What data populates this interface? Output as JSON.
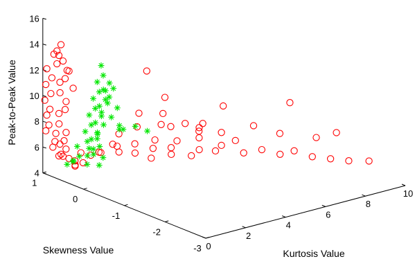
{
  "chart_data": {
    "type": "scatter",
    "title": "",
    "projection": "3d",
    "xlabel": "Kurtosis Value",
    "ylabel": "Skewness Value",
    "zlabel": "Peak-to-Peak Value",
    "xlim": [
      0,
      10
    ],
    "ylim": [
      -3,
      1
    ],
    "zlim": [
      4,
      16
    ],
    "xticks": [
      "0",
      "2",
      "4",
      "6",
      "8",
      "10"
    ],
    "yticks": [
      "1",
      "0",
      "-1",
      "-2",
      "-3"
    ],
    "zticks": [
      "4",
      "6",
      "8",
      "10",
      "12",
      "14",
      "16"
    ],
    "grid": false,
    "series": [
      {
        "marker": "circle",
        "color": "#ff0000",
        "points": [
          [
            2.2,
            0.9,
            4.6
          ],
          [
            2.5,
            0.8,
            4.8
          ],
          [
            3.0,
            0.6,
            4.9
          ],
          [
            3.3,
            0.9,
            5.0
          ],
          [
            3.6,
            0.5,
            4.7
          ],
          [
            3.8,
            0.2,
            4.6
          ],
          [
            4.0,
            0.7,
            5.0
          ],
          [
            4.3,
            0.4,
            4.9
          ],
          [
            4.6,
            0.1,
            4.7
          ],
          [
            4.8,
            0.6,
            5.1
          ],
          [
            5.0,
            0.3,
            4.8
          ],
          [
            5.2,
            -0.1,
            4.6
          ],
          [
            5.5,
            0.4,
            5.0
          ],
          [
            5.8,
            0.0,
            4.7
          ],
          [
            6.0,
            -0.3,
            4.9
          ],
          [
            6.2,
            0.2,
            5.2
          ],
          [
            6.5,
            -0.2,
            5.0
          ],
          [
            6.8,
            -0.6,
            4.8
          ],
          [
            7.0,
            -0.3,
            5.3
          ],
          [
            7.3,
            -0.8,
            5.1
          ],
          [
            7.6,
            -1.1,
            5.0
          ],
          [
            7.9,
            -1.3,
            5.4
          ],
          [
            8.2,
            -1.6,
            5.2
          ],
          [
            8.5,
            -1.9,
            5.3
          ],
          [
            8.8,
            -2.2,
            5.4
          ],
          [
            9.2,
            -2.5,
            5.6
          ],
          [
            4.0,
            0.6,
            7.5
          ],
          [
            4.5,
            0.3,
            6.8
          ],
          [
            5.0,
            0.5,
            7.2
          ],
          [
            5.5,
            0.2,
            6.6
          ],
          [
            6.0,
            0.1,
            6.2
          ],
          [
            6.5,
            -0.2,
            6.0
          ],
          [
            7.0,
            0.0,
            7.6
          ],
          [
            7.5,
            -0.5,
            6.5
          ],
          [
            8.0,
            -0.9,
            6.2
          ],
          [
            8.3,
            -1.0,
            8.6
          ],
          [
            8.6,
            -1.5,
            6.4
          ],
          [
            9.0,
            -1.8,
            7.0
          ],
          [
            3.5,
            0.4,
            6.9
          ],
          [
            4.8,
            0.8,
            10.2
          ],
          [
            5.3,
            0.6,
            8.2
          ],
          [
            3.2,
            0.7,
            6.1
          ],
          [
            2.7,
            0.5,
            5.6
          ],
          [
            5.8,
            0.7,
            5.6
          ],
          [
            6.6,
            0.4,
            5.3
          ],
          [
            7.2,
            0.6,
            5.4
          ],
          [
            2.0,
            0.6,
            5.3
          ],
          [
            1.5,
            0.8,
            5.2
          ],
          [
            1.2,
            0.6,
            4.8
          ],
          [
            0.9,
            0.8,
            5.0
          ],
          [
            0.6,
            0.9,
            5.2
          ],
          [
            0.4,
            0.7,
            5.5
          ],
          [
            0.3,
            0.9,
            6.0
          ],
          [
            0.2,
            0.8,
            6.6
          ],
          [
            0.15,
            1.0,
            7.2
          ],
          [
            0.1,
            0.9,
            7.8
          ],
          [
            0.2,
            1.0,
            8.4
          ],
          [
            0.15,
            0.9,
            9.0
          ],
          [
            0.1,
            1.0,
            9.6
          ],
          [
            0.2,
            0.9,
            10.2
          ],
          [
            0.15,
            1.0,
            10.8
          ],
          [
            0.25,
            0.9,
            11.4
          ],
          [
            0.2,
            1.0,
            12.0
          ],
          [
            0.3,
            0.8,
            12.6
          ],
          [
            0.35,
            0.9,
            13.2
          ],
          [
            0.5,
            0.8,
            14.0
          ],
          [
            0.4,
            0.7,
            12.9
          ],
          [
            0.3,
            0.6,
            11.7
          ],
          [
            0.25,
            0.7,
            10.5
          ],
          [
            0.3,
            0.6,
            9.3
          ],
          [
            0.2,
            0.7,
            8.1
          ],
          [
            0.25,
            0.6,
            6.9
          ],
          [
            0.3,
            0.7,
            5.7
          ],
          [
            0.6,
            0.5,
            5.0
          ],
          [
            0.8,
            0.6,
            4.7
          ],
          [
            1.0,
            0.7,
            4.9
          ],
          [
            0.45,
            0.8,
            6.3
          ],
          [
            0.35,
            0.6,
            7.5
          ],
          [
            0.4,
            0.8,
            8.7
          ],
          [
            0.35,
            0.6,
            9.9
          ],
          [
            0.45,
            0.8,
            11.1
          ],
          [
            0.4,
            0.6,
            12.3
          ],
          [
            0.5,
            0.5,
            11.0
          ],
          [
            0.45,
            0.9,
            7.0
          ],
          [
            0.55,
            0.7,
            6.0
          ],
          [
            0.3,
            0.8,
            13.6
          ],
          [
            0.6,
            0.9,
            13.0
          ],
          [
            0.7,
            0.7,
            12.0
          ]
        ]
      },
      {
        "marker": "star",
        "color": "#00e600",
        "points": [
          [
            0.5,
            0.5,
            5.3
          ],
          [
            0.6,
            0.4,
            5.8
          ],
          [
            0.7,
            0.5,
            6.4
          ],
          [
            0.8,
            0.3,
            7.0
          ],
          [
            0.9,
            0.4,
            7.6
          ],
          [
            1.0,
            0.3,
            8.2
          ],
          [
            1.1,
            0.4,
            8.8
          ],
          [
            1.2,
            0.3,
            9.4
          ],
          [
            1.3,
            0.4,
            10.0
          ],
          [
            1.4,
            0.3,
            10.6
          ],
          [
            1.5,
            0.4,
            11.2
          ],
          [
            1.6,
            0.3,
            11.8
          ],
          [
            1.7,
            0.4,
            12.4
          ],
          [
            0.6,
            0.2,
            6.1
          ],
          [
            0.7,
            0.1,
            6.7
          ],
          [
            0.8,
            0.2,
            7.3
          ],
          [
            0.9,
            0.1,
            7.9
          ],
          [
            1.0,
            0.2,
            8.5
          ],
          [
            1.1,
            0.1,
            9.1
          ],
          [
            1.2,
            0.2,
            9.7
          ],
          [
            1.3,
            0.1,
            10.3
          ],
          [
            1.4,
            0.2,
            10.9
          ],
          [
            1.5,
            0.1,
            11.5
          ],
          [
            0.4,
            0.6,
            5.0
          ],
          [
            1.2,
            0.5,
            4.8
          ],
          [
            1.6,
            0.4,
            4.7
          ],
          [
            2.0,
            0.5,
            5.0
          ],
          [
            0.5,
            0.0,
            6.5
          ],
          [
            0.6,
            -0.1,
            7.2
          ],
          [
            0.7,
            0.0,
            8.0
          ],
          [
            0.8,
            -0.1,
            8.8
          ],
          [
            0.9,
            0.0,
            9.6
          ],
          [
            1.0,
            -0.1,
            10.4
          ],
          [
            1.1,
            0.0,
            11.2
          ],
          [
            1.8,
            0.2,
            8.6
          ],
          [
            2.0,
            0.1,
            8.0
          ],
          [
            2.2,
            0.2,
            7.5
          ],
          [
            2.6,
            0.3,
            7.2
          ],
          [
            3.0,
            0.2,
            7.4
          ],
          [
            3.4,
            0.1,
            7.0
          ],
          [
            1.9,
            0.3,
            10.0
          ],
          [
            2.1,
            0.2,
            9.2
          ],
          [
            1.7,
            0.1,
            11.0
          ],
          [
            0.3,
            0.4,
            5.6
          ],
          [
            1.3,
            0.5,
            6.0
          ],
          [
            1.5,
            0.4,
            6.8
          ]
        ]
      }
    ]
  }
}
